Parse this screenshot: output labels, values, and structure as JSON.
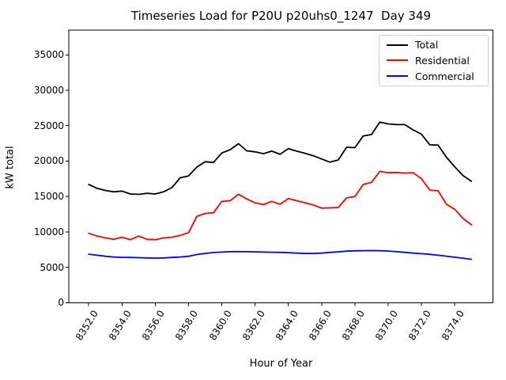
{
  "title": "Timeseries Load for P20U p20uhs0_1247  Day 349",
  "chart_data": {
    "type": "line",
    "title": "Timeseries Load for P20U p20uhs0_1247  Day 349",
    "xlabel": "Hour of Year",
    "ylabel": "kW total",
    "xlim": [
      8350.8,
      8376.3
    ],
    "ylim": [
      0,
      38500
    ],
    "grid": false,
    "legend_position": "upper right",
    "xtick_labels": [
      "8352.0",
      "8354.0",
      "8356.0",
      "8358.0",
      "8360.0",
      "8362.0",
      "8364.0",
      "8366.0",
      "8368.0",
      "8370.0",
      "8372.0",
      "8374.0"
    ],
    "xtick_values": [
      8352,
      8354,
      8356,
      8358,
      8360,
      8362,
      8364,
      8366,
      8368,
      8370,
      8372,
      8374
    ],
    "ytick_labels": [
      "0",
      "5000",
      "10000",
      "15000",
      "20000",
      "25000",
      "30000",
      "35000"
    ],
    "ytick_values": [
      0,
      5000,
      10000,
      15000,
      20000,
      25000,
      30000,
      35000
    ],
    "x": [
      8352.0,
      8352.5,
      8353.0,
      8353.5,
      8354.0,
      8354.5,
      8355.0,
      8355.5,
      8356.0,
      8356.5,
      8357.0,
      8357.5,
      8358.0,
      8358.5,
      8359.0,
      8359.5,
      8360.0,
      8360.5,
      8361.0,
      8361.5,
      8362.0,
      8362.5,
      8363.0,
      8363.5,
      8364.0,
      8364.5,
      8365.0,
      8365.5,
      8366.0,
      8366.5,
      8367.0,
      8367.5,
      8368.0,
      8368.5,
      8369.0,
      8369.5,
      8370.0,
      8370.5,
      8371.0,
      8371.5,
      8372.0,
      8372.5,
      8373.0,
      8373.5,
      8374.0,
      8374.5,
      8375.0
    ],
    "series": [
      {
        "name": "Total",
        "color": "#000000",
        "values": [
          16700,
          16150,
          15850,
          15650,
          15750,
          15350,
          15300,
          15450,
          15350,
          15650,
          16250,
          17650,
          17900,
          19150,
          19900,
          19800,
          21150,
          21600,
          22450,
          21450,
          21300,
          21050,
          21400,
          20950,
          21750,
          21400,
          21100,
          20750,
          20300,
          19850,
          20150,
          21950,
          21900,
          23550,
          23750,
          25500,
          25250,
          25150,
          25150,
          24400,
          23800,
          22300,
          22250,
          20550,
          19200,
          17950,
          17150
        ]
      },
      {
        "name": "Residential",
        "color": "#ff0000",
        "values": [
          9800,
          9400,
          9150,
          8950,
          9250,
          8900,
          9400,
          8950,
          8900,
          9150,
          9250,
          9500,
          9900,
          12200,
          12600,
          12700,
          14300,
          14400,
          15320,
          14650,
          14100,
          13850,
          14300,
          13900,
          14700,
          14400,
          14100,
          13800,
          13350,
          13400,
          13450,
          14800,
          15000,
          16700,
          17000,
          18550,
          18350,
          18400,
          18300,
          18350,
          17500,
          15900,
          15800,
          13900,
          13200,
          11900,
          11000
        ]
      },
      {
        "name": "Commercial",
        "color": "#0000ff",
        "values": [
          6840,
          6700,
          6550,
          6450,
          6400,
          6380,
          6350,
          6320,
          6300,
          6320,
          6380,
          6450,
          6550,
          6800,
          6950,
          7080,
          7150,
          7200,
          7210,
          7200,
          7180,
          7150,
          7120,
          7100,
          7060,
          7000,
          6950,
          6950,
          7000,
          7100,
          7180,
          7280,
          7320,
          7350,
          7360,
          7330,
          7290,
          7200,
          7100,
          7000,
          6920,
          6820,
          6700,
          6560,
          6420,
          6280,
          6120
        ]
      }
    ]
  }
}
